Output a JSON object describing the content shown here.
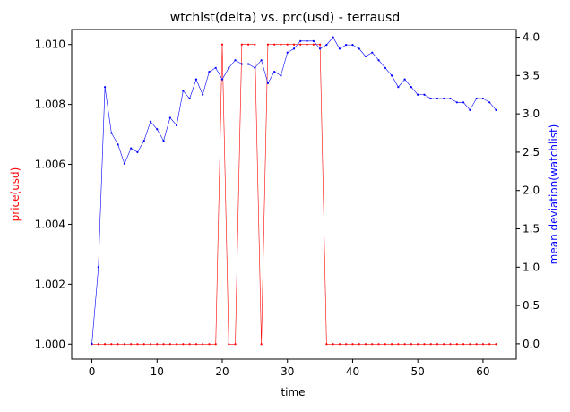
{
  "chart_data": {
    "type": "line",
    "title": "wtchlst(delta) vs. prc(usd) - terrausd",
    "xlabel": "time",
    "ylabel_left": "price(usd)",
    "ylabel_right": "mean deviation(watchlist)",
    "xlim": [
      -3.1,
      65.1
    ],
    "ylim_left": [
      0.9995,
      1.0105
    ],
    "ylim_right": [
      -0.2,
      4.1
    ],
    "x_ticks": [
      0,
      10,
      20,
      30,
      40,
      50,
      60
    ],
    "y_ticks_left": [
      1.0,
      1.002,
      1.004,
      1.006,
      1.008,
      1.01
    ],
    "y_tick_labels_left": [
      "1.000",
      "1.002",
      "1.004",
      "1.006",
      "1.008",
      "1.010"
    ],
    "y_ticks_right": [
      0.0,
      0.5,
      1.0,
      1.5,
      2.0,
      2.5,
      3.0,
      3.5,
      4.0
    ],
    "y_tick_labels_right": [
      "0.0",
      "0.5",
      "1.0",
      "1.5",
      "2.0",
      "2.5",
      "3.0",
      "3.5",
      "4.0"
    ],
    "grid": false,
    "series": [
      {
        "axis": "left",
        "color": "#ff0000",
        "x": [
          0,
          1,
          2,
          3,
          4,
          5,
          6,
          7,
          8,
          9,
          10,
          11,
          12,
          13,
          14,
          15,
          16,
          17,
          18,
          19,
          20,
          21,
          22,
          23,
          24,
          25,
          26,
          27,
          28,
          29,
          30,
          31,
          32,
          33,
          34,
          35,
          36,
          37,
          38,
          39,
          40,
          41,
          42,
          43,
          44,
          45,
          46,
          47,
          48,
          49,
          50,
          51,
          52,
          53,
          54,
          55,
          56,
          57,
          58,
          59,
          60,
          61,
          62
        ],
        "values": [
          1.0,
          1.0,
          1.0,
          1.0,
          1.0,
          1.0,
          1.0,
          1.0,
          1.0,
          1.0,
          1.0,
          1.0,
          1.0,
          1.0,
          1.0,
          1.0,
          1.0,
          1.0,
          1.0,
          1.0,
          1.01,
          1.0,
          1.0,
          1.01,
          1.01,
          1.01,
          1.0,
          1.01,
          1.01,
          1.01,
          1.01,
          1.01,
          1.01,
          1.01,
          1.01,
          1.01,
          1.0,
          1.0,
          1.0,
          1.0,
          1.0,
          1.0,
          1.0,
          1.0,
          1.0,
          1.0,
          1.0,
          1.0,
          1.0,
          1.0,
          1.0,
          1.0,
          1.0,
          1.0,
          1.0,
          1.0,
          1.0,
          1.0,
          1.0,
          1.0,
          1.0,
          1.0,
          1.0
        ]
      },
      {
        "axis": "right",
        "color": "#0000ff",
        "x": [
          0,
          1,
          2,
          3,
          4,
          5,
          6,
          7,
          8,
          9,
          10,
          11,
          12,
          13,
          14,
          15,
          16,
          17,
          18,
          19,
          20,
          21,
          22,
          23,
          24,
          25,
          26,
          27,
          28,
          29,
          30,
          31,
          32,
          33,
          34,
          35,
          36,
          37,
          38,
          39,
          40,
          41,
          42,
          43,
          44,
          45,
          46,
          47,
          48,
          49,
          50,
          51,
          52,
          53,
          54,
          55,
          56,
          57,
          58,
          59,
          60,
          61,
          62
        ],
        "values": [
          0.0,
          1.0,
          3.35,
          2.75,
          2.6,
          2.35,
          2.55,
          2.5,
          2.65,
          2.9,
          2.8,
          2.65,
          2.95,
          2.85,
          3.3,
          3.2,
          3.45,
          3.25,
          3.55,
          3.6,
          3.45,
          3.6,
          3.7,
          3.65,
          3.65,
          3.6,
          3.7,
          3.4,
          3.55,
          3.5,
          3.8,
          3.85,
          3.95,
          3.95,
          3.95,
          3.85,
          3.9,
          4.0,
          3.85,
          3.9,
          3.9,
          3.85,
          3.75,
          3.8,
          3.7,
          3.6,
          3.5,
          3.35,
          3.45,
          3.35,
          3.25,
          3.25,
          3.2,
          3.2,
          3.2,
          3.2,
          3.15,
          3.15,
          3.05,
          3.2,
          3.2,
          3.15,
          3.05
        ]
      }
    ]
  }
}
